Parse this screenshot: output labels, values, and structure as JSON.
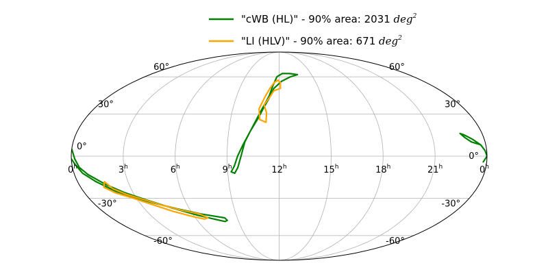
{
  "chart_data": {
    "type": "line",
    "projection": "mollweide",
    "title": "",
    "xlabel": "",
    "ylabel": "",
    "grid": true,
    "legend_position": "top-center",
    "ra_tick_labels": [
      {
        "label": "0",
        "unit": "h",
        "ra_hours": 24
      },
      {
        "label": "21",
        "unit": "h",
        "ra_hours": 21
      },
      {
        "label": "18",
        "unit": "h",
        "ra_hours": 18
      },
      {
        "label": "15",
        "unit": "h",
        "ra_hours": 15
      },
      {
        "label": "12",
        "unit": "h",
        "ra_hours": 12
      },
      {
        "label": "9",
        "unit": "h",
        "ra_hours": 9
      },
      {
        "label": "6",
        "unit": "h",
        "ra_hours": 6
      },
      {
        "label": "3",
        "unit": "h",
        "ra_hours": 3
      },
      {
        "label": "0",
        "unit": "h",
        "ra_hours": 0
      }
    ],
    "dec_tick_labels": [
      {
        "label": "60°",
        "dec": 60
      },
      {
        "label": "30°",
        "dec": 30
      },
      {
        "label": "0°",
        "dec": 0
      },
      {
        "label": "-30°",
        "dec": -30
      },
      {
        "label": "-60°",
        "dec": -60
      }
    ],
    "series": [
      {
        "name": "\"cWB (HL)\" - 90% area: 2031",
        "name_math": "deg",
        "name_sup": "2",
        "color": "#008000",
        "contours": [
          [
            [
              13.7,
              62
            ],
            [
              13.0,
              63
            ],
            [
              12.3,
              63
            ],
            [
              11.8,
              60
            ],
            [
              11.5,
              52
            ],
            [
              11.3,
              44
            ],
            [
              10.9,
              34
            ],
            [
              10.6,
              26
            ],
            [
              10.3,
              18
            ],
            [
              10.0,
              10
            ],
            [
              9.8,
              0
            ],
            [
              9.6,
              -8
            ],
            [
              9.4,
              -12
            ],
            [
              9.2,
              -11
            ],
            [
              9.4,
              -7
            ],
            [
              9.6,
              0
            ],
            [
              9.9,
              8
            ],
            [
              10.3,
              18
            ],
            [
              10.7,
              27
            ],
            [
              11.0,
              35
            ],
            [
              11.3,
              42
            ],
            [
              11.6,
              50
            ],
            [
              12.2,
              56
            ],
            [
              13.0,
              60
            ],
            [
              13.7,
              62
            ]
          ],
          [
            [
              23.7,
              8
            ],
            [
              23.2,
              10
            ],
            [
              22.9,
              13
            ],
            [
              22.7,
              16
            ],
            [
              22.9,
              15
            ],
            [
              23.3,
              12
            ],
            [
              23.7,
              8
            ],
            [
              23.9,
              4
            ],
            [
              24.0,
              0
            ],
            [
              23.8,
              -4
            ]
          ],
          [
            [
              0.0,
              5
            ],
            [
              0.1,
              2
            ],
            [
              0.2,
              -2
            ],
            [
              0.4,
              -8
            ],
            [
              0.8,
              -13
            ],
            [
              1.6,
              -20
            ],
            [
              2.5,
              -26
            ],
            [
              3.5,
              -31
            ],
            [
              4.8,
              -37
            ],
            [
              6.3,
              -43
            ],
            [
              7.3,
              -46
            ],
            [
              8.0,
              -48
            ],
            [
              8.2,
              -47
            ],
            [
              8.1,
              -45
            ],
            [
              7.6,
              -44
            ],
            [
              6.6,
              -42
            ],
            [
              5.2,
              -38
            ],
            [
              4.0,
              -34
            ],
            [
              3.0,
              -30
            ],
            [
              2.0,
              -25
            ],
            [
              1.1,
              -18
            ],
            [
              0.5,
              -12
            ],
            [
              0.2,
              -6
            ],
            [
              0.0,
              -2
            ]
          ]
        ]
      },
      {
        "name": "\"LI (HLV)\" - 90% area: 671",
        "name_math": "deg",
        "name_sup": "2",
        "color": "#ffa500",
        "contours": [
          [
            [
              11.9,
              57
            ],
            [
              11.6,
              55
            ],
            [
              11.3,
              50
            ],
            [
              11.0,
              43
            ],
            [
              10.7,
              34
            ],
            [
              10.8,
              26
            ],
            [
              11.2,
              24
            ],
            [
              11.2,
              31
            ],
            [
              11.0,
              37
            ],
            [
              11.4,
              44
            ],
            [
              11.6,
              48
            ],
            [
              12.1,
              50
            ],
            [
              12.1,
              55
            ],
            [
              11.9,
              57
            ]
          ],
          [
            [
              1.6,
              -18
            ],
            [
              1.4,
              -22
            ],
            [
              1.9,
              -26
            ],
            [
              2.8,
              -30
            ],
            [
              3.8,
              -35
            ],
            [
              4.8,
              -40
            ],
            [
              5.9,
              -44
            ],
            [
              6.6,
              -46
            ],
            [
              6.9,
              -45
            ],
            [
              6.5,
              -42
            ],
            [
              5.4,
              -39
            ],
            [
              4.3,
              -35
            ],
            [
              3.4,
              -31
            ],
            [
              2.5,
              -27
            ],
            [
              1.9,
              -23
            ],
            [
              1.6,
              -18
            ]
          ]
        ]
      }
    ]
  }
}
